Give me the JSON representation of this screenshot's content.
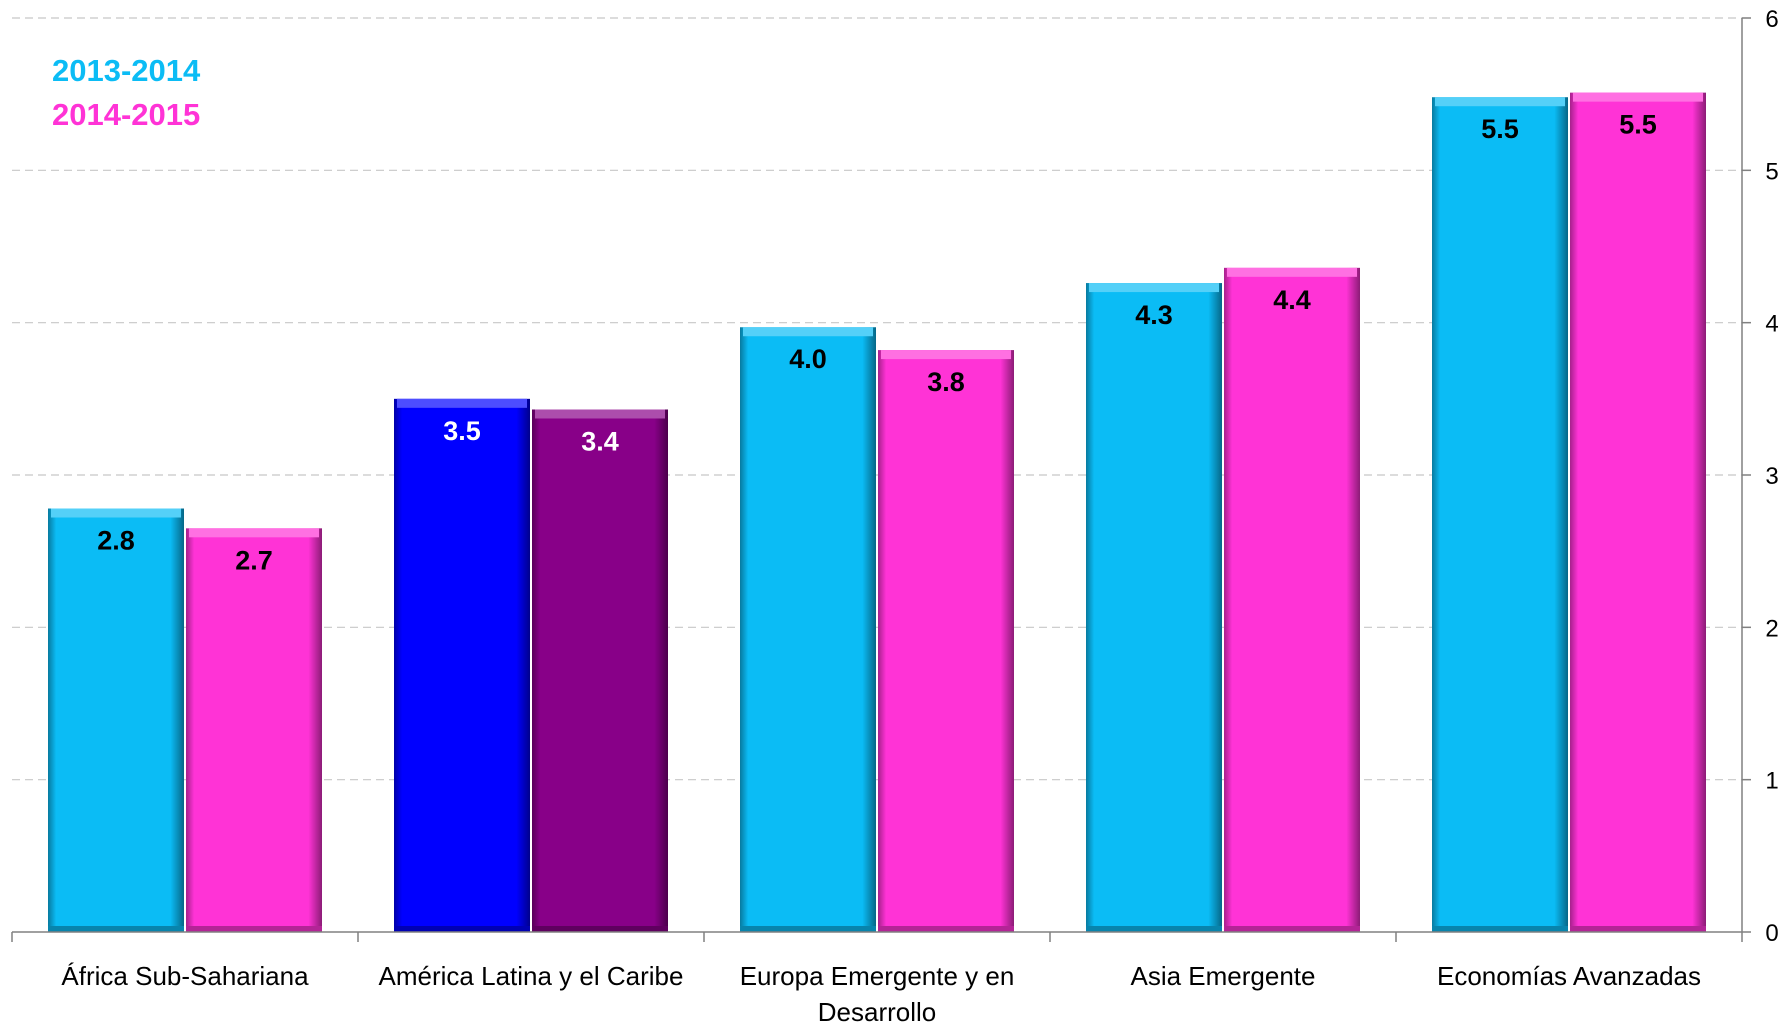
{
  "chart_data": {
    "type": "bar",
    "categories": [
      [
        "África Sub-Sahariana"
      ],
      [
        "América Latina y el Caribe"
      ],
      [
        "Europa Emergente y en",
        "Desarrollo"
      ],
      [
        "Asia Emergente"
      ],
      [
        "Economías Avanzadas"
      ]
    ],
    "series": [
      {
        "name": "2013-2014",
        "values": [
          2.78,
          3.5,
          3.97,
          4.26,
          5.48
        ],
        "labels": [
          "2.8",
          "3.5",
          "4.0",
          "4.3",
          "5.5"
        ],
        "color": "#0bbcf5",
        "bar_colors": [
          "#0bbcf5",
          "#0000ff",
          "#0bbcf5",
          "#0bbcf5",
          "#0bbcf5"
        ],
        "label_colors": [
          "#000000",
          "#ffffff",
          "#000000",
          "#000000",
          "#000000"
        ]
      },
      {
        "name": "2014-2015",
        "values": [
          2.65,
          3.43,
          3.82,
          4.36,
          5.51
        ],
        "labels": [
          "2.7",
          "3.4",
          "3.8",
          "4.4",
          "5.5"
        ],
        "color": "#ff33d6",
        "bar_colors": [
          "#ff33d6",
          "#880088",
          "#ff33d6",
          "#ff33d6",
          "#ff33d6"
        ],
        "label_colors": [
          "#000000",
          "#ffffff",
          "#000000",
          "#000000",
          "#000000"
        ]
      }
    ],
    "y_axis": {
      "position": "right",
      "ylim": [
        0,
        6
      ],
      "ticks": [
        "0",
        "1",
        "2",
        "3",
        "4",
        "5",
        "6"
      ]
    },
    "grid": true,
    "legend": "top-left"
  }
}
